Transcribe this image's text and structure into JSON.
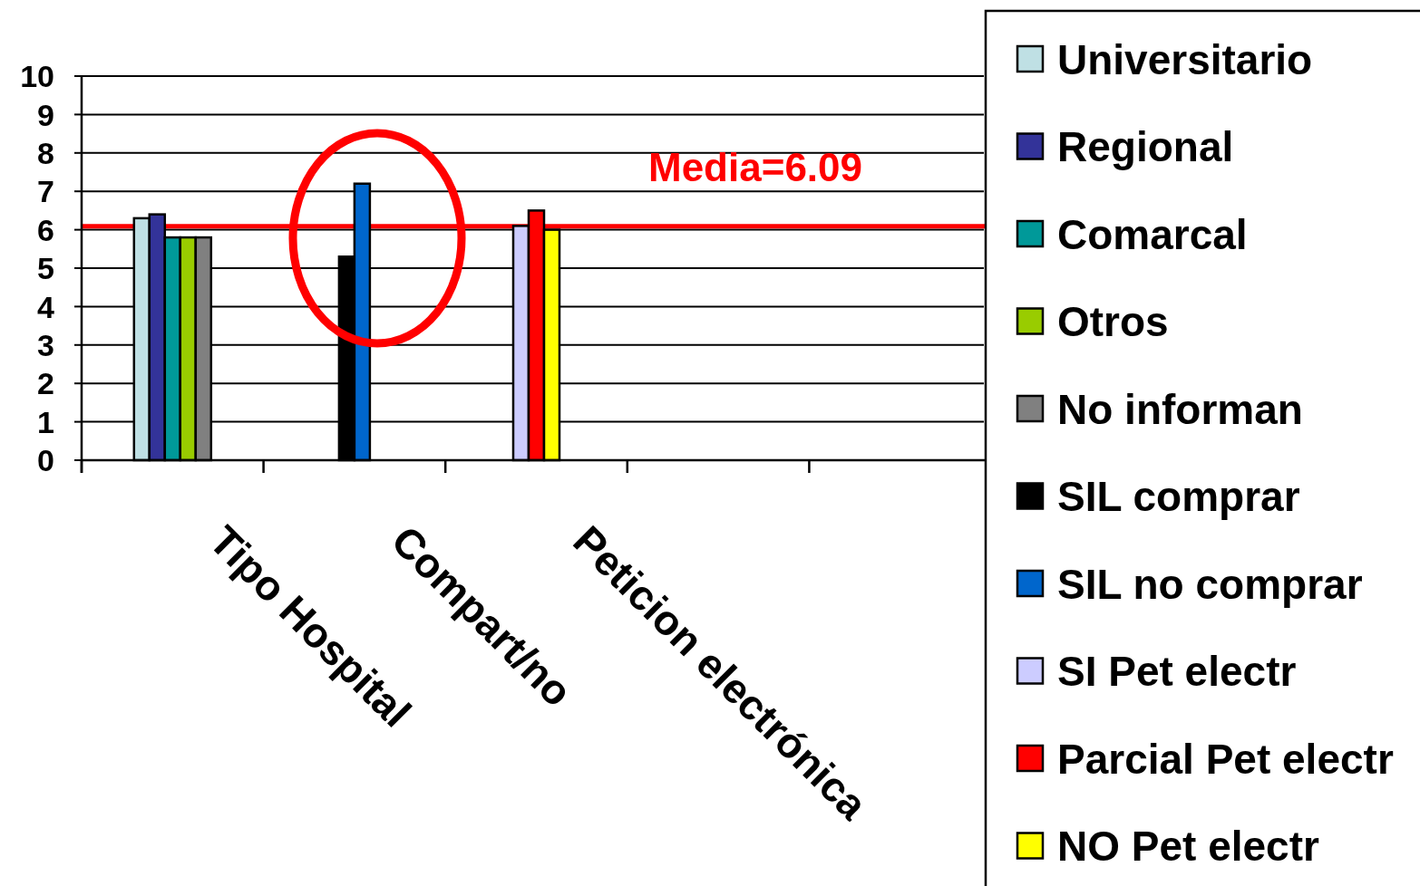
{
  "chart_data": {
    "type": "bar",
    "categories": [
      "Tipo Hospital",
      "Compart/no",
      "Peticion electrónica",
      null,
      null
    ],
    "series": [
      {
        "name": "Universitario",
        "color": "#bfe0e4",
        "values": [
          6.3,
          null,
          null,
          null,
          null
        ]
      },
      {
        "name": "Regional",
        "color": "#333399",
        "values": [
          6.4,
          null,
          null,
          null,
          null
        ]
      },
      {
        "name": "Comarcal",
        "color": "#009999",
        "values": [
          5.8,
          null,
          null,
          null,
          null
        ]
      },
      {
        "name": "Otros",
        "color": "#99cc00",
        "values": [
          5.8,
          null,
          null,
          null,
          null
        ]
      },
      {
        "name": "No informan",
        "color": "#808080",
        "values": [
          5.8,
          null,
          null,
          null,
          null
        ]
      },
      {
        "name": "SIL comprar",
        "color": "#000000",
        "values": [
          null,
          5.3,
          null,
          null,
          null
        ]
      },
      {
        "name": "SIL no comprar",
        "color": "#0066cc",
        "values": [
          null,
          7.2,
          null,
          null,
          null
        ]
      },
      {
        "name": "SI Pet electr",
        "color": "#ccccff",
        "values": [
          null,
          null,
          6.1,
          null,
          null
        ]
      },
      {
        "name": "Parcial Pet electr",
        "color": "#ff0000",
        "values": [
          null,
          null,
          6.5,
          null,
          null
        ]
      },
      {
        "name": "NO Pet electr",
        "color": "#ffff00",
        "values": [
          null,
          null,
          6.0,
          null,
          null
        ]
      }
    ],
    "ylim": [
      0,
      10
    ],
    "yticks": [
      0,
      1,
      2,
      3,
      4,
      5,
      6,
      7,
      8,
      9,
      10
    ],
    "grid": "y",
    "legend": "right",
    "ref_lines": [
      {
        "axis": "y",
        "value": 6.09,
        "label": "Media=6.09",
        "color": "#ff0000"
      }
    ]
  }
}
